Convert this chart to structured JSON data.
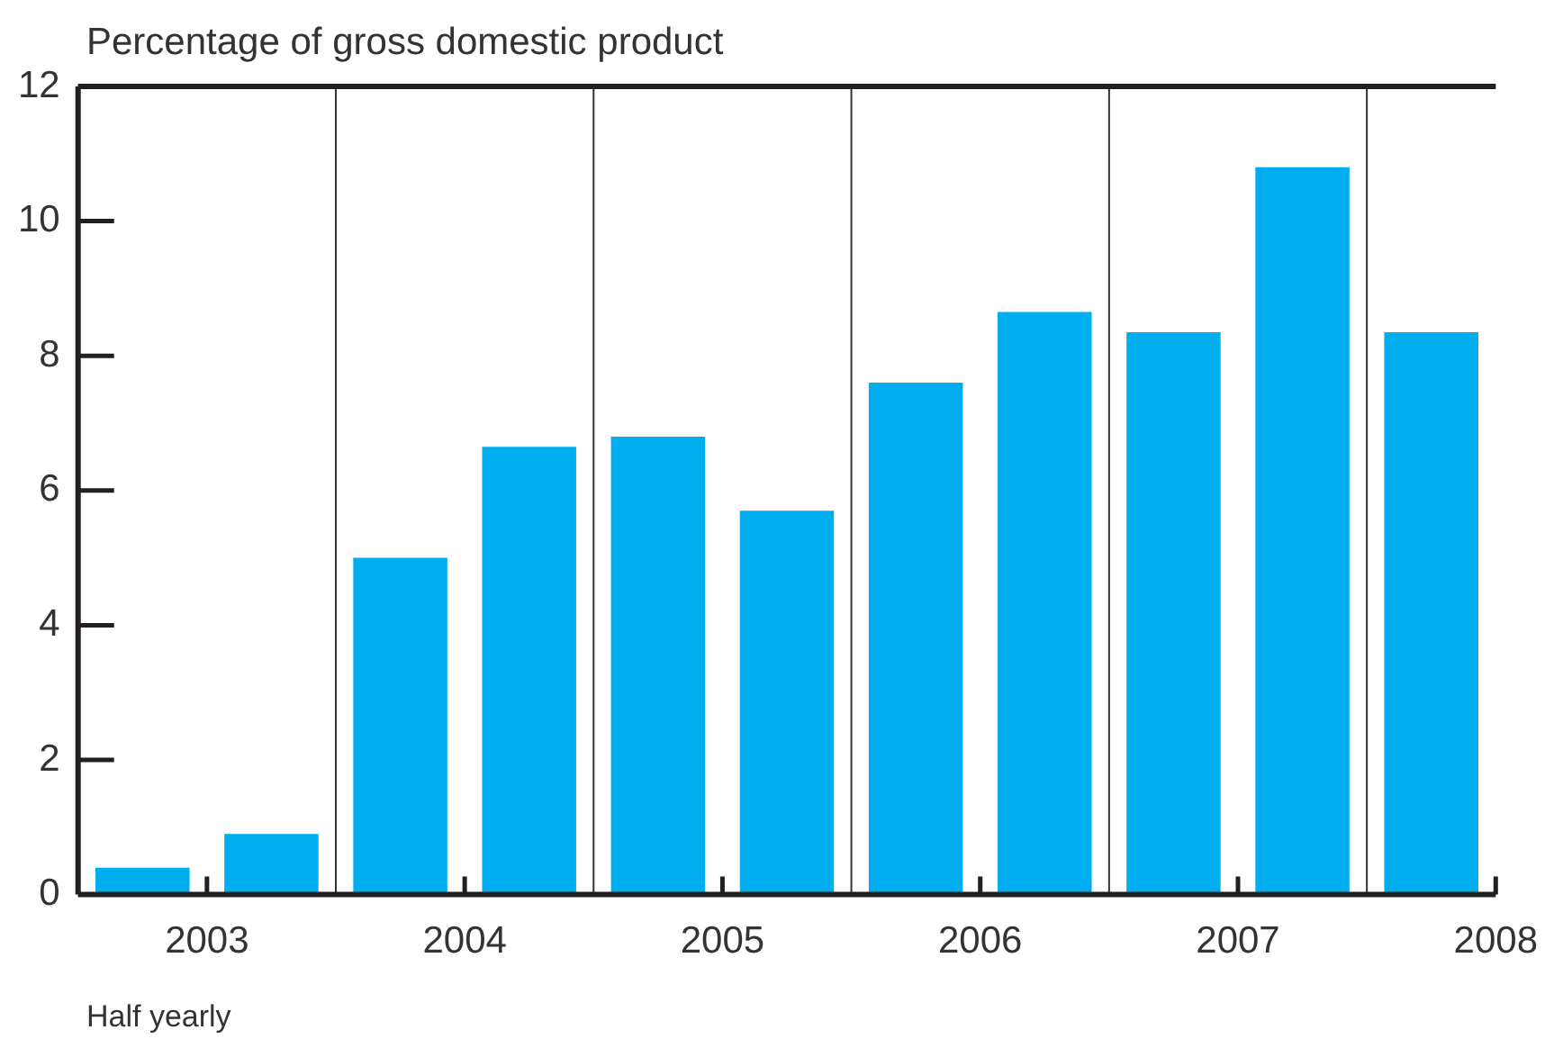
{
  "chart_data": {
    "type": "bar",
    "ylabel": "Percentage of gross domestic product",
    "xlabel": "Half yearly",
    "x": [
      2003.25,
      2003.75,
      2004.25,
      2004.75,
      2005.25,
      2005.75,
      2006.25,
      2006.75,
      2007.25,
      2007.75,
      2008.25
    ],
    "values": [
      0.4,
      0.9,
      5.0,
      6.65,
      6.8,
      5.7,
      7.6,
      8.65,
      8.35,
      10.8,
      8.35
    ],
    "color": "#00adef",
    "xlim": [
      2003,
      2008.5
    ],
    "xticks": [
      {
        "value": 2003.5,
        "label": "2003"
      },
      {
        "value": 2004.5,
        "label": "2004"
      },
      {
        "value": 2005.5,
        "label": "2005"
      },
      {
        "value": 2006.5,
        "label": "2006"
      },
      {
        "value": 2007.5,
        "label": "2007"
      },
      {
        "value": 2008.5,
        "label": "2008"
      }
    ],
    "ylim": [
      0,
      12
    ],
    "yticks": [
      0,
      2,
      4,
      6,
      8,
      10,
      12
    ],
    "ref_lines": [
      {
        "axis": "x",
        "value": 2004,
        "color": "#333333"
      },
      {
        "axis": "x",
        "value": 2005,
        "color": "#333333"
      },
      {
        "axis": "x",
        "value": 2006,
        "color": "#333333"
      },
      {
        "axis": "x",
        "value": 2007,
        "color": "#333333"
      },
      {
        "axis": "x",
        "value": 2008,
        "color": "#333333"
      }
    ],
    "legend": false
  }
}
